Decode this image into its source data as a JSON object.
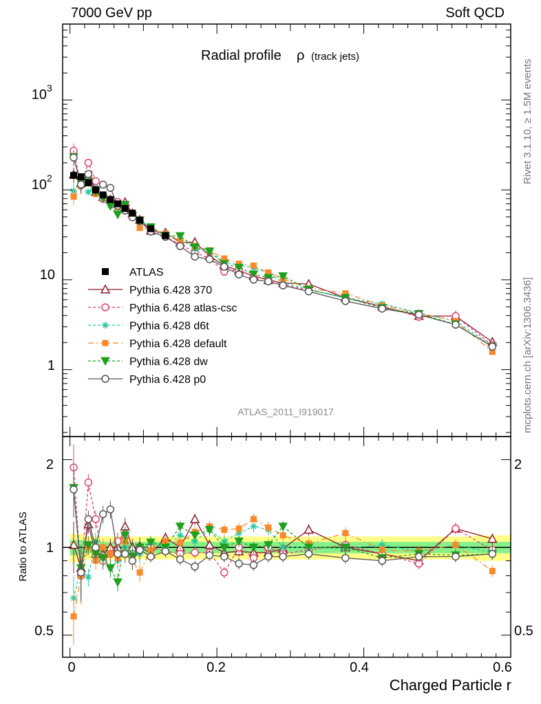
{
  "header": {
    "left": "7000 GeV pp",
    "right": "Soft QCD"
  },
  "side": {
    "top": "Rivet 3.1.10, ≥ 1.5M events",
    "bottom": "mcplots.cern.ch [arXiv:1306.3436]"
  },
  "plot": {
    "title_main": "Radial profile",
    "title_sym": "ρ",
    "title_sub": "(track jets)",
    "analysis_id": "ATLAS_2011_I919017",
    "ratio_ylabel": "Ratio to ATLAS",
    "xlabel": "Charged Particle r",
    "main_yticks": [
      "1",
      "10",
      "10",
      "10"
    ],
    "main_ytick_exp": [
      "",
      "",
      "2",
      "3"
    ],
    "ratio_yticks": [
      "0.5",
      "1",
      "2"
    ],
    "xticks": [
      "0",
      "0.2",
      "0.4",
      "0.6"
    ]
  },
  "chart_data": {
    "type": "scatter",
    "title": "Radial profile ρ (track jets)",
    "xlabel": "Charged Particle r",
    "ylabel_ratio": "Ratio to ATLAS",
    "xlim": [
      -0.01,
      0.6
    ],
    "ylim": [
      0.18,
      7000
    ],
    "ylog": true,
    "ratio_ylim": [
      0.42,
      2.4
    ],
    "ratio_ylog": true,
    "legend_position": "left",
    "x": [
      0.005,
      0.015,
      0.025,
      0.035,
      0.045,
      0.055,
      0.065,
      0.075,
      0.085,
      0.095,
      0.11,
      0.13,
      0.15,
      0.17,
      0.19,
      0.21,
      0.23,
      0.25,
      0.27,
      0.29,
      0.325,
      0.375,
      0.425,
      0.475,
      0.525,
      0.575
    ],
    "data": {
      "name": "ATLAS",
      "values": [
        145,
        140,
        120,
        100,
        88,
        78,
        70,
        62,
        55,
        46,
        37,
        31,
        26,
        21,
        18,
        15,
        13,
        11.5,
        10.3,
        9.3,
        7.8,
        6.3,
        5.3,
        4.4,
        3.4,
        1.9
      ]
    },
    "series": [
      {
        "name": "Pythia 6.428 370",
        "color": "#8b1a2b",
        "marker": "triangle-open",
        "dash": "none",
        "ratio": [
          1.02,
          0.85,
          1.2,
          0.95,
          0.95,
          1.0,
          1.0,
          1.18,
          1.0,
          1.01,
          0.95,
          1.08,
          1.0,
          1.25,
          1.02,
          0.96,
          0.97,
          0.96,
          0.96,
          0.99,
          1.15,
          1.0,
          0.95,
          0.9,
          1.16,
          1.07
        ]
      },
      {
        "name": "Pythia 6.428 atlas-csc",
        "color": "#e0406c",
        "marker": "circle-open",
        "dash": "4,3",
        "ratio": [
          1.88,
          0.8,
          1.67,
          1.25,
          0.9,
          0.95,
          1.05,
          1.1,
          0.95,
          1.0,
          1.0,
          0.97,
          0.95,
          0.96,
          0.96,
          0.82,
          1.0,
          0.92,
          1.0,
          0.95,
          0.98,
          1.02,
          0.95,
          0.88,
          1.16,
          0.98
        ]
      },
      {
        "name": "Pythia 6.428 d6t",
        "color": "#22c8a0",
        "marker": "asterisk",
        "dash": "4,3",
        "ratio": [
          0.67,
          0.85,
          0.79,
          1.05,
          0.92,
          0.85,
          0.9,
          1.0,
          0.95,
          0.95,
          1.05,
          1.0,
          1.1,
          1.05,
          1.15,
          1.05,
          1.12,
          1.18,
          1.15,
          1.0,
          1.0,
          0.99,
          1.02,
          0.97,
          1.02,
          0.96
        ]
      },
      {
        "name": "Pythia 6.428 default",
        "color": "#f88a2c",
        "marker": "square",
        "dash": "8,4,2,4",
        "ratio": [
          0.58,
          0.8,
          1.0,
          0.9,
          1.0,
          0.95,
          0.92,
          1.05,
          0.9,
          0.82,
          0.98,
          1.05,
          1.04,
          1.13,
          1.18,
          1.15,
          1.16,
          1.25,
          1.17,
          1.1,
          1.03,
          1.12,
          0.98,
          0.97,
          1.02,
          0.83
        ]
      },
      {
        "name": "Pythia 6.428 dw",
        "color": "#20a020",
        "marker": "triangle-down",
        "dash": "4,3",
        "ratio": [
          1.6,
          0.85,
          1.02,
          0.95,
          0.92,
          0.85,
          0.76,
          1.1,
          0.93,
          1.0,
          1.04,
          1.0,
          1.18,
          1.1,
          1.15,
          1.0,
          1.05,
          1.0,
          1.02,
          1.18,
          1.0,
          1.0,
          0.92,
          0.95,
          0.94,
          0.95
        ]
      },
      {
        "name": "Pythia 6.428 p0",
        "color": "#555555",
        "marker": "circle-open",
        "dash": "none",
        "ratio": [
          1.58,
          0.82,
          1.25,
          1.0,
          1.3,
          1.35,
          0.95,
          0.95,
          0.9,
          0.98,
          0.93,
          0.97,
          0.91,
          0.86,
          0.94,
          0.93,
          0.88,
          0.87,
          0.93,
          0.93,
          0.95,
          0.92,
          0.9,
          0.93,
          0.93,
          0.95
        ]
      }
    ]
  }
}
